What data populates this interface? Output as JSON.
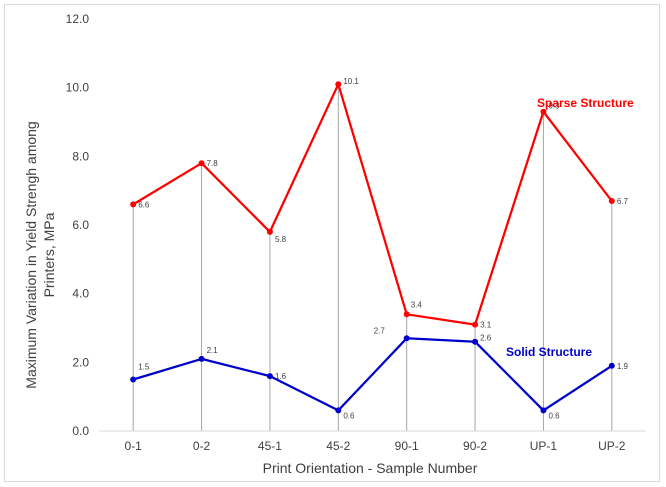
{
  "chart_data": {
    "type": "line",
    "categories": [
      "0-1",
      "0-2",
      "45-1",
      "45-2",
      "90-1",
      "90-2",
      "UP-1",
      "UP-2"
    ],
    "series": [
      {
        "name": "Sparse Structure",
        "values": [
          6.6,
          7.8,
          5.8,
          10.1,
          3.4,
          3.1,
          9.3,
          6.7
        ],
        "labels": [
          "6.6",
          "7.8",
          "5.8",
          "10.1",
          "3.4",
          "3.1",
          "9.3",
          "6.7"
        ],
        "color": "#ff0000"
      },
      {
        "name": "Solid Structure",
        "values": [
          1.5,
          2.1,
          1.6,
          0.6,
          2.7,
          2.6,
          0.6,
          1.9
        ],
        "labels": [
          "1.5",
          "2.1",
          "1.6",
          "0.6",
          "2.7",
          "2.6",
          "0.6",
          "1.9"
        ],
        "color": "#0000cc"
      }
    ],
    "ylim": [
      0,
      12
    ],
    "yticks": [
      "0.0",
      "2.0",
      "4.0",
      "6.0",
      "8.0",
      "10.0",
      "12.0"
    ],
    "xlabel": "Print Orientation - Sample Number",
    "ylabel_line1": "Maximum Variation in Yield Strengh among",
    "ylabel_line2": "Printers, MPa",
    "drop_lines": true,
    "drop_line_color": "#a6a6a6",
    "grid": false
  }
}
